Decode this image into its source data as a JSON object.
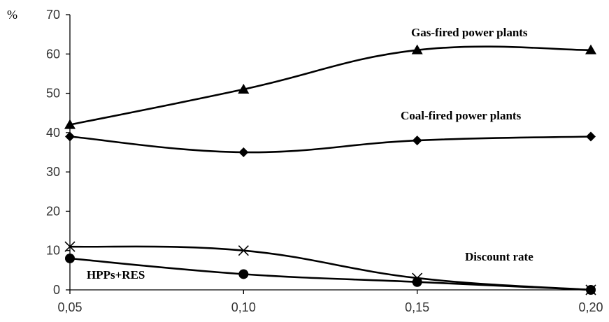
{
  "chart_data": {
    "type": "line",
    "title": "",
    "xlabel": "",
    "ylabel": "%",
    "x": [
      "0,05",
      "0,10",
      "0,15",
      "0,20"
    ],
    "x_values": [
      0.05,
      0.1,
      0.15,
      0.2
    ],
    "xlim": [
      0.05,
      0.2
    ],
    "ylim": [
      0,
      70
    ],
    "y_ticks": [
      "0",
      "10",
      "20",
      "30",
      "40",
      "50",
      "60",
      "70"
    ],
    "grid": false,
    "annotations": [
      "Gas-fired power plants",
      "Coal-fired power plants",
      "Discount rate",
      "HPPs+RES"
    ],
    "series": [
      {
        "name": "Gas-fired power plants",
        "marker": "triangle",
        "values": [
          42,
          51,
          61,
          61
        ]
      },
      {
        "name": "Coal-fired power plants",
        "marker": "diamond",
        "values": [
          39,
          35,
          38,
          39
        ]
      },
      {
        "name": "",
        "marker": "x",
        "values": [
          11,
          10,
          3,
          0
        ]
      },
      {
        "name": "HPPs+RES",
        "marker": "circle",
        "values": [
          8,
          4,
          2,
          0
        ]
      }
    ],
    "colors": {
      "line": "#000000",
      "tick_text": "#333333"
    }
  }
}
